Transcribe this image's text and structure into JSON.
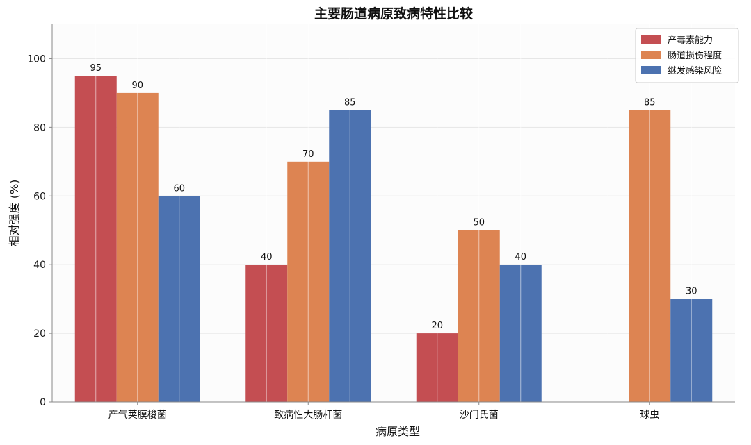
{
  "chart_data": {
    "type": "bar",
    "title": "主要肠道病原致病特性比较",
    "xlabel": "病原类型",
    "ylabel": "相对强度 (%)",
    "categories": [
      "产气荚膜梭菌",
      "致病性大肠杆菌",
      "沙门氏菌",
      "球虫"
    ],
    "series": [
      {
        "name": "产毒素能力",
        "color": "#c44e52",
        "values": [
          95,
          40,
          20,
          null
        ],
        "labels": [
          "95",
          "40",
          "20",
          ""
        ]
      },
      {
        "name": "肠道损伤程度",
        "color": "#dd8452",
        "values": [
          90,
          70,
          50,
          85
        ],
        "labels": [
          "90",
          "70",
          "50",
          "85"
        ]
      },
      {
        "name": "继发感染风险",
        "color": "#4c72b0",
        "values": [
          60,
          85,
          40,
          30
        ],
        "labels": [
          "60",
          "85",
          "40",
          "30"
        ]
      }
    ],
    "ylim": [
      0,
      110
    ],
    "yticks": [
      0,
      20,
      40,
      60,
      80,
      100
    ],
    "ytick_labels": [
      "0",
      "20",
      "40",
      "60",
      "80",
      "100"
    ],
    "grid": true,
    "legend_position": "top-right"
  }
}
